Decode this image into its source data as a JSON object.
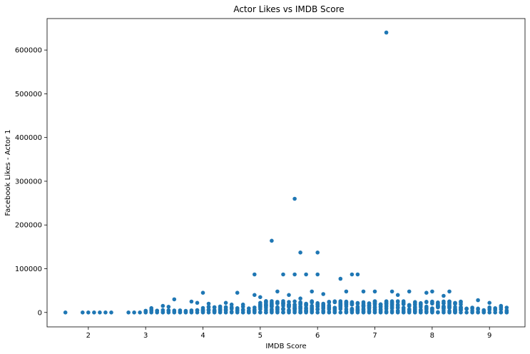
{
  "chart_data": {
    "type": "scatter",
    "title": "Actor Likes vs IMDB Score",
    "xlabel": "IMDB Score",
    "ylabel": "Facebook Likes - Actor 1",
    "xlim": [
      1.28,
      9.62
    ],
    "ylim": [
      -33000,
      672000
    ],
    "xticks": [
      2,
      3,
      4,
      5,
      6,
      7,
      8,
      9
    ],
    "yticks": [
      0,
      100000,
      200000,
      300000,
      400000,
      500000,
      600000
    ],
    "grid": false,
    "legend": "none",
    "marker_color": "#1f77b4",
    "outliers": [
      [
        7.2,
        640000
      ],
      [
        5.6,
        260000
      ],
      [
        5.2,
        164000
      ],
      [
        5.7,
        137000
      ],
      [
        6.0,
        137000
      ],
      [
        4.9,
        87000
      ],
      [
        5.4,
        87000
      ],
      [
        5.6,
        87000
      ],
      [
        5.8,
        87000
      ],
      [
        6.0,
        87000
      ],
      [
        6.6,
        87000
      ],
      [
        6.7,
        87000
      ],
      [
        6.4,
        77000
      ],
      [
        4.0,
        45000
      ],
      [
        4.6,
        45000
      ],
      [
        3.5,
        30000
      ],
      [
        3.8,
        25000
      ],
      [
        3.9,
        22000
      ],
      [
        3.3,
        15000
      ],
      [
        3.4,
        13000
      ],
      [
        3.1,
        10000
      ],
      [
        9.2,
        15000
      ],
      [
        9.3,
        11000
      ],
      [
        9.0,
        22000
      ],
      [
        8.3,
        48000
      ],
      [
        8.8,
        28000
      ],
      [
        5.3,
        48000
      ],
      [
        5.5,
        40000
      ],
      [
        5.9,
        48000
      ],
      [
        6.5,
        48000
      ],
      [
        6.8,
        48000
      ],
      [
        7.3,
        48000
      ],
      [
        7.6,
        48000
      ],
      [
        7.9,
        45000
      ],
      [
        8.0,
        48000
      ],
      [
        8.2,
        38000
      ],
      [
        4.9,
        40000
      ],
      [
        5.0,
        35000
      ],
      [
        5.7,
        32000
      ],
      [
        6.1,
        42000
      ],
      [
        7.0,
        48000
      ],
      [
        7.4,
        40000
      ],
      [
        4.4,
        22000
      ],
      [
        4.5,
        18000
      ],
      [
        4.2,
        12000
      ],
      [
        4.1,
        20000
      ],
      [
        4.7,
        18000
      ],
      [
        5.1,
        26000
      ]
    ]
  }
}
